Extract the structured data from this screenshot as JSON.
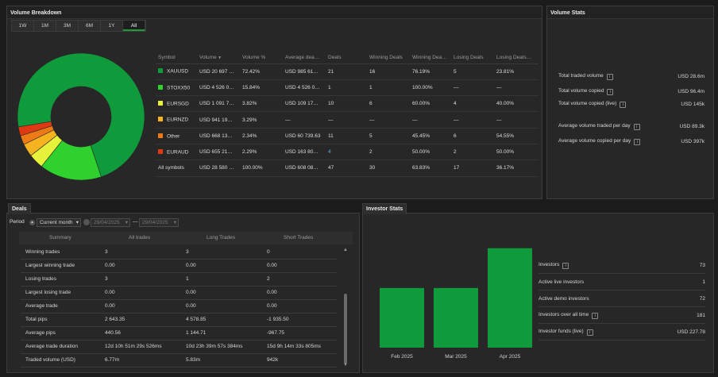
{
  "volume_breakdown": {
    "title": "Volume Breakdown",
    "tabs": [
      "1W",
      "1M",
      "3M",
      "6M",
      "1Y",
      "All"
    ],
    "active_tab": "All",
    "columns": [
      "Symbol",
      "Volume",
      "Volume %",
      "Average dea…",
      "Deals",
      "Winning Deals",
      "Winning Dea…",
      "Losing Deals",
      "Losing Deals…"
    ],
    "sort_icon": "sort-desc-icon",
    "rows": [
      {
        "symbol": "XAUUSD",
        "color": "#0f9b3c",
        "volume": "USD 20 697 …",
        "pct": "72.42%",
        "avg": "USD 985 61…",
        "deals": "21",
        "win": "16",
        "winpct": "76.19%",
        "lose": "5",
        "losepct": "23.81%"
      },
      {
        "symbol": "STOXX50",
        "color": "#2ed12e",
        "volume": "USD 4 526 0…",
        "pct": "15.84%",
        "avg": "USD 4 526 0…",
        "deals": "1",
        "win": "1",
        "winpct": "100.00%",
        "lose": "—",
        "losepct": "—"
      },
      {
        "symbol": "EURSGD",
        "color": "#e7f23b",
        "volume": "USD 1 091 7…",
        "pct": "3.82%",
        "avg": "USD 109 17…",
        "deals": "10",
        "win": "6",
        "winpct": "60.00%",
        "lose": "4",
        "losepct": "40.00%"
      },
      {
        "symbol": "EURNZD",
        "color": "#f5b31f",
        "volume": "USD 941 19…",
        "pct": "3.29%",
        "avg": "—",
        "deals": "—",
        "win": "—",
        "winpct": "—",
        "lose": "—",
        "losepct": "—"
      },
      {
        "symbol": "Other",
        "color": "#ee7a17",
        "volume": "USD 668 13…",
        "pct": "2.34%",
        "avg": "USD 60 739.63",
        "deals": "11",
        "win": "5",
        "winpct": "45.45%",
        "lose": "6",
        "losepct": "54.55%"
      },
      {
        "symbol": "EURAUD",
        "color": "#dd3a14",
        "volume": "USD 655 21…",
        "pct": "2.29%",
        "avg": "USD 163 80…",
        "deals": "4",
        "win": "2",
        "winpct": "50.00%",
        "lose": "2",
        "losepct": "50.00%"
      },
      {
        "symbol": "All symbols",
        "color": "",
        "volume": "USD 28 580 …",
        "pct": "100.00%",
        "avg": "USD 608 08…",
        "deals": "47",
        "win": "30",
        "winpct": "63.83%",
        "lose": "17",
        "losepct": "36.17%"
      }
    ]
  },
  "volume_stats": {
    "title": "Volume Stats",
    "rows": [
      {
        "label": "Total traded volume",
        "value": "USD 28.6m"
      },
      {
        "label": "Total volume copied",
        "value": "USD 96.4m"
      },
      {
        "label": "Total volume copied (live)",
        "value": "USD 145k"
      },
      {
        "label": "Average volume traded per day",
        "value": "USD 89.3k"
      },
      {
        "label": "Average volume copied per day",
        "value": "USD 397k"
      }
    ]
  },
  "deals": {
    "title": "Deals",
    "period_label": "Period",
    "period_value": "Current month",
    "date_from": "29/04/2025",
    "date_to": "29/04/2025",
    "date_sep": "—",
    "columns": [
      "Summary",
      "All trades",
      "Long Trades",
      "Short Trades"
    ],
    "rows": [
      [
        "Winning trades",
        "3",
        "3",
        "0"
      ],
      [
        "Largest winning trade",
        "0.00",
        "0.00",
        "0.00"
      ],
      [
        "Losing trades",
        "3",
        "1",
        "2"
      ],
      [
        "Largest losing trade",
        "0.00",
        "0.00",
        "0.00"
      ],
      [
        "Average trade",
        "0.00",
        "0.00",
        "0.00"
      ],
      [
        "Total pips",
        "2 643.35",
        "4 578.85",
        "-1 935.50"
      ],
      [
        "Average pips",
        "440.56",
        "1 144.71",
        "-967.75"
      ],
      [
        "Average trade duration",
        "12d 10h 51m 29s 526ms",
        "10d 23h 39m 57s 384ms",
        "15d 9h 14m 33s 805ms"
      ],
      [
        "Traded volume (USD)",
        "6.77m",
        "5.83m",
        "942k"
      ]
    ]
  },
  "investor_stats": {
    "title": "Investor Stats",
    "rows": [
      {
        "label": "Investors",
        "value": "73",
        "info": true
      },
      {
        "label": "Active live investors",
        "value": "1",
        "info": false
      },
      {
        "label": "Active demo investors",
        "value": "72",
        "info": false
      },
      {
        "label": "Investors over all time",
        "value": "181",
        "info": true
      },
      {
        "label": "Investor funds (live)",
        "value": "USD 227.78",
        "info": true
      }
    ]
  },
  "chart_data": [
    {
      "type": "pie",
      "categories": [
        "XAUUSD",
        "STOXX50",
        "EURSGD",
        "EURNZD",
        "Other",
        "EURAUD"
      ],
      "values": [
        72.42,
        15.84,
        3.82,
        3.29,
        2.34,
        2.29
      ],
      "colors": [
        "#0f9b3c",
        "#2ed12e",
        "#e7f23b",
        "#f5b31f",
        "#ee7a17",
        "#dd3a14"
      ]
    },
    {
      "type": "bar",
      "categories": [
        "Feb 2025",
        "Mar 2025",
        "Apr 2025"
      ],
      "values": [
        0.75,
        0.75,
        1.25
      ],
      "color": "#0f9b3c"
    }
  ]
}
